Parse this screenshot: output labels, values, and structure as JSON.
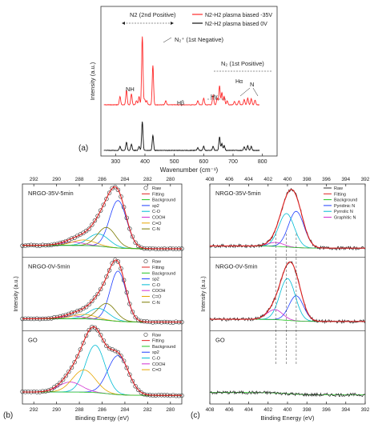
{
  "chart_data": [
    {
      "id": "a",
      "type": "line",
      "panel_label": "(a)",
      "xlabel": "Wavenumber (cm⁻¹)",
      "ylabel": "Intensity (a.u.)",
      "xlim": [
        250,
        850
      ],
      "xticks": [
        300,
        400,
        500,
        600,
        700,
        800
      ],
      "legend": [
        "N2-H2 plasma biased -35V",
        "N2-H2 plasma biased 0V"
      ],
      "legend_position": "top-right",
      "series": [
        {
          "name": "N2-H2 plasma biased -35V",
          "color": "#ff2a2a",
          "peaks": [
            [
              315,
              0.12
            ],
            [
              337,
              0.22
            ],
            [
              354,
              0.16
            ],
            [
              371,
              0.06
            ],
            [
              380,
              0.12
            ],
            [
              391,
              1.0
            ],
            [
              399,
              0.08
            ],
            [
              406,
              0.06
            ],
            [
              427,
              0.58
            ],
            [
              471,
              0.06
            ],
            [
              580,
              0.06
            ],
            [
              600,
              0.1
            ],
            [
              632,
              0.14
            ],
            [
              646,
              0.1
            ],
            [
              654,
              0.28
            ],
            [
              662,
              0.18
            ],
            [
              670,
              0.12
            ],
            [
              680,
              0.06
            ],
            [
              705,
              0.05
            ],
            [
              720,
              0.06
            ],
            [
              738,
              0.08
            ],
            [
              750,
              0.1
            ],
            [
              762,
              0.09
            ],
            [
              775,
              0.07
            ]
          ]
        },
        {
          "name": "N2-H2 plasma biased 0V",
          "color": "#111111",
          "peaks": [
            [
              315,
              0.06
            ],
            [
              337,
              0.12
            ],
            [
              354,
              0.09
            ],
            [
              380,
              0.06
            ],
            [
              391,
              0.42
            ],
            [
              427,
              0.22
            ],
            [
              580,
              0.04
            ],
            [
              600,
              0.06
            ],
            [
              632,
              0.06
            ],
            [
              654,
              0.2
            ],
            [
              662,
              0.1
            ],
            [
              670,
              0.07
            ],
            [
              738,
              0.05
            ],
            [
              750,
              0.07
            ],
            [
              762,
              0.06
            ]
          ]
        }
      ],
      "annotations": [
        "N2 (2nd Positive)",
        "N₂⁺ (1st Negative)",
        "NH",
        "Hβ",
        "Hγ",
        "Hα",
        "N",
        "N₂ (1st Positive)"
      ]
    },
    {
      "id": "b",
      "type": "line",
      "panel_label": "(b)",
      "xlabel": "Binding Energy (eV)",
      "ylabel": "Intensity (a.u.)",
      "xlim": [
        293,
        279
      ],
      "xticks": [
        292,
        290,
        288,
        286,
        284,
        282,
        280
      ],
      "subplots": [
        {
          "title": "NRGO-35V-5min",
          "legend": [
            "Raw",
            "Fitting",
            "Background",
            "sp2",
            "C-O",
            "COOH",
            "C=O",
            "C-N"
          ],
          "components": [
            {
              "name": "sp2",
              "color": "#1f3fff",
              "center": 284.6,
              "height": 0.85,
              "width": 0.75
            },
            {
              "name": "C-O",
              "color": "#00bcd4",
              "center": 286.3,
              "height": 0.22,
              "width": 0.9
            },
            {
              "name": "COOH",
              "color": "#d02fd0",
              "center": 288.6,
              "height": 0.06,
              "width": 1.0
            },
            {
              "name": "C=O",
              "color": "#e6a600",
              "center": 287.6,
              "height": 0.1,
              "width": 1.0
            },
            {
              "name": "C-N",
              "color": "#7a7a00",
              "center": 285.6,
              "height": 0.35,
              "width": 0.8
            }
          ]
        },
        {
          "title": "NRGO-0V-5min",
          "legend": [
            "Raw",
            "Fitting",
            "Background",
            "sp2",
            "C-O",
            "COOH",
            "C=O",
            "C-N"
          ],
          "components": [
            {
              "name": "sp2",
              "color": "#1f3fff",
              "center": 284.6,
              "height": 0.9,
              "width": 0.7
            },
            {
              "name": "C-O",
              "color": "#00bcd4",
              "center": 286.3,
              "height": 0.2,
              "width": 0.9
            },
            {
              "name": "COOH",
              "color": "#d02fd0",
              "center": 288.6,
              "height": 0.05,
              "width": 1.0
            },
            {
              "name": "C=O",
              "color": "#e6a600",
              "center": 287.6,
              "height": 0.08,
              "width": 1.0
            },
            {
              "name": "C-N",
              "color": "#7a7a00",
              "center": 285.6,
              "height": 0.3,
              "width": 0.8
            }
          ]
        },
        {
          "title": "GO",
          "legend": [
            "Raw",
            "Fitting",
            "Background",
            "sp2",
            "C-O",
            "COOH",
            "C=O"
          ],
          "components": [
            {
              "name": "sp2",
              "color": "#1f3fff",
              "center": 284.6,
              "height": 0.7,
              "width": 0.9
            },
            {
              "name": "C-O",
              "color": "#00bcd4",
              "center": 286.6,
              "height": 0.85,
              "width": 0.85
            },
            {
              "name": "COOH",
              "color": "#d02fd0",
              "center": 288.8,
              "height": 0.18,
              "width": 1.0
            },
            {
              "name": "C=O",
              "color": "#e6a600",
              "center": 287.6,
              "height": 0.4,
              "width": 1.0
            }
          ]
        }
      ]
    },
    {
      "id": "c",
      "type": "line",
      "panel_label": "(c)",
      "xlabel": "Binding Energy (eV)",
      "ylabel": "Intensity (a.u.)",
      "xlim": [
        408,
        392
      ],
      "xticks": [
        408,
        406,
        404,
        402,
        400,
        398,
        396,
        394,
        392
      ],
      "subplots": [
        {
          "title": "NRGO-35V-5min",
          "legend": [
            "Raw",
            "Fitting",
            "Background",
            "Pyridinic N",
            "Pyrrolic N",
            "Graphitic N"
          ],
          "components": [
            {
              "name": "Pyridinic N",
              "color": "#1f3fff",
              "center": 399.1,
              "height": 0.65,
              "width": 0.8
            },
            {
              "name": "Pyrrolic N",
              "color": "#00bcd4",
              "center": 400.1,
              "height": 0.6,
              "width": 0.8
            },
            {
              "name": "Graphitic N",
              "color": "#d02fd0",
              "center": 401.2,
              "height": 0.07,
              "width": 0.8
            }
          ]
        },
        {
          "title": "NRGO-0V-5min",
          "legend": [],
          "components": [
            {
              "name": "Pyridinic N",
              "color": "#1f3fff",
              "center": 399.1,
              "height": 0.45,
              "width": 0.75
            },
            {
              "name": "Pyrrolic N",
              "color": "#00bcd4",
              "center": 400.0,
              "height": 0.75,
              "width": 0.8
            },
            {
              "name": "Graphitic N",
              "color": "#d02fd0",
              "center": 401.3,
              "height": 0.18,
              "width": 0.8
            }
          ]
        },
        {
          "title": "GO",
          "legend": [],
          "components": []
        }
      ],
      "reference_lines": [
        401.2,
        400.1,
        399.1
      ]
    }
  ]
}
